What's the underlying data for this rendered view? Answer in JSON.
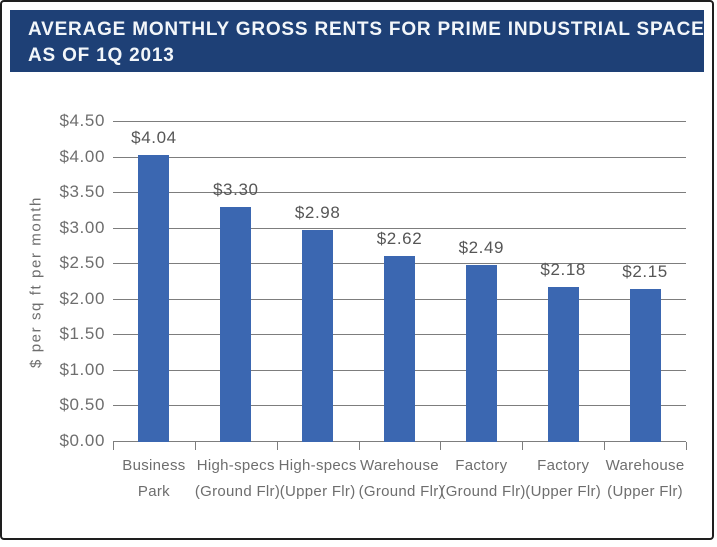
{
  "header": {
    "title_line1": "AVERAGE MONTHLY GROSS RENTS FOR PRIME INDUSTRIAL SPACE",
    "title_line2": "AS OF 1Q 2013"
  },
  "chart_data": {
    "type": "bar",
    "title": "AVERAGE MONTHLY GROSS RENTS FOR PRIME INDUSTRIAL SPACE AS OF 1Q 2013",
    "categories": [
      "Business Park",
      "High-specs (Ground Flr)",
      "High-specs (Upper Flr)",
      "Warehouse (Ground Flr)",
      "Factory (Ground Flr)",
      "Factory (Upper Flr)",
      "Warehouse (Upper Flr)"
    ],
    "category_lines": [
      [
        "Business",
        "Park"
      ],
      [
        "High-specs",
        "(Ground Flr)"
      ],
      [
        "High-specs",
        "(Upper Flr)"
      ],
      [
        "Warehouse",
        "(Ground Flr)"
      ],
      [
        "Factory",
        "(Ground Flr)"
      ],
      [
        "Factory",
        "(Upper Flr)"
      ],
      [
        "Warehouse",
        "(Upper Flr)"
      ]
    ],
    "values": [
      4.04,
      3.3,
      2.98,
      2.62,
      2.49,
      2.18,
      2.15
    ],
    "value_labels": [
      "$4.04",
      "$3.30",
      "$2.98",
      "$2.62",
      "$2.49",
      "$2.18",
      "$2.15"
    ],
    "xlabel": "",
    "ylabel": "$ per sq ft per month",
    "ylim": [
      0,
      4.5
    ],
    "ytick_step": 0.5,
    "ytick_labels": [
      "$0.00",
      "$0.50",
      "$1.00",
      "$1.50",
      "$2.00",
      "$2.50",
      "$3.00",
      "$3.50",
      "$4.00",
      "$4.50"
    ],
    "grid": true,
    "legend_position": "none",
    "colors": {
      "bar": "#3B67B1",
      "banner_bg": "#1E4076",
      "banner_text": "#F2F6FA",
      "gridline": "#7D7D7D",
      "tick_text": "#6E6E6E",
      "value_text": "#565656",
      "frame_border": "#1E1E1E"
    }
  }
}
